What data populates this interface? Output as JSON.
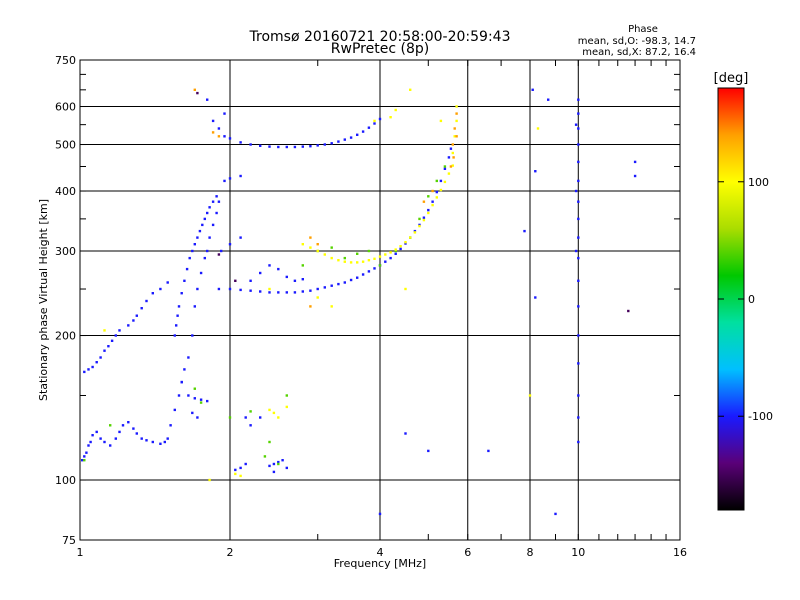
{
  "chart_data": {
    "type": "scatter",
    "title": "Tromsø 20160721 20:58:00-20:59:43",
    "subtitle": "RwPretec (8p)",
    "xlabel": "Frequency [MHz]",
    "ylabel": "Stationary phase Virtual Height [km]",
    "x_scale": "log",
    "y_scale": "log",
    "xlim": [
      1,
      16
    ],
    "ylim": [
      75,
      750
    ],
    "x_ticks": [
      1,
      2,
      4,
      6,
      8,
      10,
      16
    ],
    "x_tick_labels": [
      "1",
      "2",
      "4",
      "6",
      "8",
      "10",
      "16"
    ],
    "y_ticks": [
      75,
      100,
      200,
      300,
      400,
      500,
      600,
      750
    ],
    "y_tick_labels": [
      "75",
      "100",
      "200",
      "300",
      "400",
      "500",
      "600",
      "750"
    ],
    "grid": true,
    "phase_legend": {
      "heading": "Phase",
      "lines": [
        "mean, sd,O: -98.3, 14.7",
        "mean, sd,X:  87.2, 16.4"
      ]
    },
    "colorbar": {
      "label": "[deg]",
      "ticks": [
        100,
        0,
        -100
      ],
      "tick_labels": [
        "100",
        "0",
        "-100"
      ],
      "range": [
        -180,
        180
      ],
      "colors": [
        "#000000",
        "#5a0078",
        "#1a1aff",
        "#00c0ff",
        "#00e0a0",
        "#00c800",
        "#aadd00",
        "#ffff00",
        "#ffa000",
        "#ff0000"
      ]
    },
    "series": [
      {
        "phase": -100,
        "points": [
          [
            1.01,
            110
          ],
          [
            1.02,
            112
          ],
          [
            1.03,
            114
          ],
          [
            1.04,
            118
          ],
          [
            1.05,
            120
          ],
          [
            1.06,
            124
          ],
          [
            1.08,
            126
          ],
          [
            1.1,
            122
          ],
          [
            1.12,
            120
          ],
          [
            1.15,
            118
          ],
          [
            1.18,
            122
          ],
          [
            1.2,
            126
          ],
          [
            1.22,
            130
          ],
          [
            1.25,
            132
          ],
          [
            1.28,
            128
          ],
          [
            1.3,
            125
          ],
          [
            1.33,
            122
          ],
          [
            1.36,
            121
          ],
          [
            1.4,
            120
          ],
          [
            1.45,
            119
          ],
          [
            1.48,
            120
          ],
          [
            1.5,
            122
          ],
          [
            1.52,
            130
          ],
          [
            1.55,
            140
          ],
          [
            1.58,
            150
          ],
          [
            1.6,
            160
          ],
          [
            1.62,
            170
          ],
          [
            1.65,
            180
          ],
          [
            1.68,
            200
          ],
          [
            1.7,
            230
          ],
          [
            1.72,
            250
          ],
          [
            1.75,
            270
          ],
          [
            1.78,
            290
          ],
          [
            1.8,
            300
          ],
          [
            1.82,
            320
          ],
          [
            1.85,
            340
          ],
          [
            1.88,
            360
          ],
          [
            1.9,
            380
          ]
        ]
      },
      {
        "phase": -100,
        "points": [
          [
            1.02,
            168
          ],
          [
            1.04,
            170
          ],
          [
            1.06,
            172
          ],
          [
            1.08,
            176
          ],
          [
            1.1,
            180
          ],
          [
            1.12,
            186
          ],
          [
            1.14,
            190
          ],
          [
            1.16,
            195
          ],
          [
            1.18,
            200
          ],
          [
            1.2,
            205
          ],
          [
            1.25,
            210
          ],
          [
            1.28,
            215
          ],
          [
            1.3,
            220
          ],
          [
            1.33,
            228
          ],
          [
            1.36,
            236
          ],
          [
            1.4,
            245
          ],
          [
            1.45,
            250
          ],
          [
            1.5,
            258
          ]
        ]
      },
      {
        "phase": -100,
        "points": [
          [
            1.55,
            200
          ],
          [
            1.56,
            210
          ],
          [
            1.57,
            220
          ],
          [
            1.58,
            230
          ],
          [
            1.6,
            245
          ],
          [
            1.62,
            260
          ],
          [
            1.64,
            275
          ],
          [
            1.66,
            290
          ],
          [
            1.68,
            300
          ],
          [
            1.7,
            310
          ],
          [
            1.72,
            320
          ],
          [
            1.74,
            330
          ],
          [
            1.76,
            340
          ],
          [
            1.78,
            350
          ],
          [
            1.8,
            360
          ],
          [
            1.82,
            370
          ],
          [
            1.85,
            380
          ],
          [
            1.88,
            390
          ]
        ]
      },
      {
        "phase": -100,
        "points": [
          [
            1.9,
            250
          ],
          [
            2.0,
            250
          ],
          [
            2.1,
            249
          ],
          [
            2.2,
            248
          ],
          [
            2.3,
            247
          ],
          [
            2.4,
            246
          ],
          [
            2.5,
            246
          ],
          [
            2.6,
            246
          ],
          [
            2.7,
            246
          ],
          [
            2.8,
            247
          ],
          [
            2.9,
            248
          ],
          [
            3.0,
            250
          ],
          [
            3.1,
            252
          ],
          [
            3.2,
            254
          ],
          [
            3.3,
            256
          ],
          [
            3.4,
            258
          ],
          [
            3.5,
            261
          ],
          [
            3.6,
            264
          ],
          [
            3.7,
            268
          ],
          [
            3.8,
            272
          ],
          [
            3.9,
            276
          ],
          [
            4.0,
            280
          ],
          [
            4.1,
            285
          ],
          [
            4.2,
            290
          ],
          [
            4.3,
            296
          ],
          [
            4.4,
            303
          ],
          [
            4.5,
            311
          ],
          [
            4.6,
            320
          ],
          [
            4.7,
            330
          ],
          [
            4.8,
            340
          ],
          [
            4.9,
            352
          ],
          [
            5.0,
            365
          ],
          [
            5.1,
            380
          ],
          [
            5.2,
            398
          ],
          [
            5.3,
            420
          ],
          [
            5.4,
            445
          ],
          [
            5.5,
            470
          ],
          [
            5.55,
            490
          ]
        ]
      },
      {
        "phase": -100,
        "points": [
          [
            1.95,
            520
          ],
          [
            2.0,
            515
          ],
          [
            2.1,
            505
          ],
          [
            2.2,
            500
          ],
          [
            2.3,
            497
          ],
          [
            2.4,
            495
          ],
          [
            2.5,
            494
          ],
          [
            2.6,
            494
          ],
          [
            2.7,
            494
          ],
          [
            2.8,
            495
          ],
          [
            2.9,
            496
          ],
          [
            3.0,
            498
          ],
          [
            3.1,
            500
          ],
          [
            3.2,
            503
          ],
          [
            3.3,
            507
          ],
          [
            3.4,
            512
          ],
          [
            3.5,
            517
          ],
          [
            3.6,
            524
          ],
          [
            3.7,
            532
          ],
          [
            3.8,
            542
          ],
          [
            3.9,
            553
          ],
          [
            4.0,
            565
          ]
        ]
      },
      {
        "phase": -100,
        "points": [
          [
            1.95,
            420
          ],
          [
            2.0,
            425
          ],
          [
            2.1,
            430
          ],
          [
            1.92,
            300
          ],
          [
            2.0,
            310
          ],
          [
            2.1,
            320
          ],
          [
            2.2,
            260
          ],
          [
            2.3,
            270
          ],
          [
            2.4,
            280
          ],
          [
            2.5,
            275
          ],
          [
            2.6,
            265
          ],
          [
            2.7,
            260
          ],
          [
            2.8,
            262
          ],
          [
            1.85,
            560
          ],
          [
            1.9,
            540
          ],
          [
            1.95,
            580
          ],
          [
            1.8,
            620
          ]
        ]
      },
      {
        "phase": -100,
        "points": [
          [
            1.65,
            150
          ],
          [
            1.7,
            148
          ],
          [
            1.75,
            147
          ],
          [
            1.8,
            146
          ],
          [
            1.6,
            160
          ],
          [
            1.68,
            138
          ],
          [
            1.72,
            135
          ],
          [
            2.05,
            105
          ],
          [
            2.1,
            106
          ],
          [
            2.15,
            108
          ],
          [
            2.4,
            107
          ],
          [
            2.45,
            108
          ],
          [
            2.5,
            109
          ],
          [
            2.55,
            110
          ],
          [
            2.6,
            106
          ],
          [
            2.45,
            104
          ],
          [
            2.2,
            130
          ],
          [
            2.15,
            135
          ],
          [
            2.3,
            135
          ]
        ]
      },
      {
        "phase": -100,
        "points": [
          [
            10,
            120
          ],
          [
            10,
            135
          ],
          [
            10,
            150
          ],
          [
            10,
            175
          ],
          [
            10,
            200
          ],
          [
            10,
            230
          ],
          [
            10,
            260
          ],
          [
            10,
            290
          ],
          [
            10,
            320
          ],
          [
            10,
            350
          ],
          [
            10,
            380
          ],
          [
            10,
            420
          ],
          [
            10,
            460
          ],
          [
            10,
            500
          ],
          [
            10,
            540
          ],
          [
            10,
            580
          ],
          [
            10,
            620
          ],
          [
            9.9,
            300
          ],
          [
            9.9,
            400
          ],
          [
            9.9,
            550
          ],
          [
            8.2,
            440
          ],
          [
            8.1,
            650
          ],
          [
            8.2,
            240
          ],
          [
            6.6,
            115
          ],
          [
            4.0,
            85
          ],
          [
            5.0,
            115
          ],
          [
            4.5,
            125
          ],
          [
            8.7,
            620
          ],
          [
            9.0,
            85
          ],
          [
            13,
            460
          ],
          [
            13,
            430
          ],
          [
            7.8,
            330
          ]
        ]
      },
      {
        "phase": 40,
        "points": [
          [
            1.02,
            110
          ],
          [
            1.15,
            130
          ],
          [
            1.7,
            155
          ],
          [
            1.75,
            145
          ],
          [
            2.0,
            135
          ],
          [
            2.2,
            139
          ],
          [
            2.35,
            112
          ],
          [
            2.4,
            120
          ],
          [
            2.5,
            108
          ],
          [
            2.6,
            150
          ],
          [
            2.8,
            280
          ],
          [
            3.0,
            300
          ],
          [
            3.2,
            305
          ],
          [
            3.4,
            290
          ],
          [
            3.6,
            296
          ],
          [
            3.8,
            300
          ],
          [
            4.0,
            280
          ],
          [
            4.3,
            300
          ],
          [
            4.6,
            320
          ],
          [
            4.8,
            350
          ],
          [
            5.0,
            390
          ],
          [
            5.2,
            420
          ],
          [
            5.4,
            450
          ]
        ]
      },
      {
        "phase": 100,
        "points": [
          [
            2.8,
            310
          ],
          [
            2.9,
            305
          ],
          [
            3.0,
            300
          ],
          [
            3.1,
            295
          ],
          [
            3.2,
            290
          ],
          [
            3.3,
            287
          ],
          [
            3.4,
            285
          ],
          [
            3.5,
            284
          ],
          [
            3.6,
            284
          ],
          [
            3.7,
            285
          ],
          [
            3.8,
            287
          ],
          [
            3.9,
            289
          ],
          [
            4.0,
            292
          ],
          [
            4.1,
            295
          ],
          [
            4.2,
            298
          ],
          [
            4.3,
            302
          ],
          [
            4.4,
            307
          ],
          [
            4.5,
            313
          ],
          [
            4.6,
            320
          ],
          [
            4.7,
            328
          ],
          [
            4.8,
            338
          ],
          [
            4.9,
            348
          ],
          [
            5.0,
            360
          ],
          [
            5.1,
            374
          ],
          [
            5.2,
            388
          ],
          [
            5.3,
            402
          ],
          [
            5.4,
            418
          ],
          [
            5.5,
            435
          ],
          [
            5.6,
            452
          ],
          [
            5.6,
            480
          ],
          [
            5.65,
            520
          ],
          [
            5.7,
            560
          ],
          [
            5.7,
            600
          ],
          [
            4.2,
            570
          ],
          [
            3.9,
            560
          ],
          [
            4.3,
            590
          ],
          [
            2.4,
            140
          ],
          [
            2.45,
            138
          ],
          [
            2.5,
            135
          ],
          [
            2.6,
            142
          ],
          [
            1.82,
            100
          ],
          [
            2.05,
            103
          ],
          [
            2.1,
            102
          ],
          [
            2.4,
            250
          ],
          [
            3.0,
            240
          ],
          [
            4.5,
            250
          ],
          [
            4.6,
            650
          ],
          [
            5.3,
            560
          ],
          [
            8.3,
            540
          ],
          [
            8.0,
            150
          ],
          [
            1.12,
            205
          ],
          [
            3.2,
            230
          ]
        ]
      },
      {
        "phase": 140,
        "points": [
          [
            5.6,
            500
          ],
          [
            5.65,
            540
          ],
          [
            5.7,
            580
          ],
          [
            5.62,
            470
          ],
          [
            5.55,
            450
          ],
          [
            5.7,
            520
          ],
          [
            2.9,
            320
          ],
          [
            3.0,
            310
          ],
          [
            1.85,
            530
          ],
          [
            1.9,
            520
          ],
          [
            4.9,
            380
          ],
          [
            5.1,
            400
          ],
          [
            1.7,
            650
          ],
          [
            2.9,
            230
          ]
        ]
      },
      {
        "phase": -150,
        "points": [
          [
            1.72,
            640
          ],
          [
            12.6,
            225
          ],
          [
            1.9,
            295
          ],
          [
            2.05,
            260
          ]
        ]
      }
    ]
  }
}
